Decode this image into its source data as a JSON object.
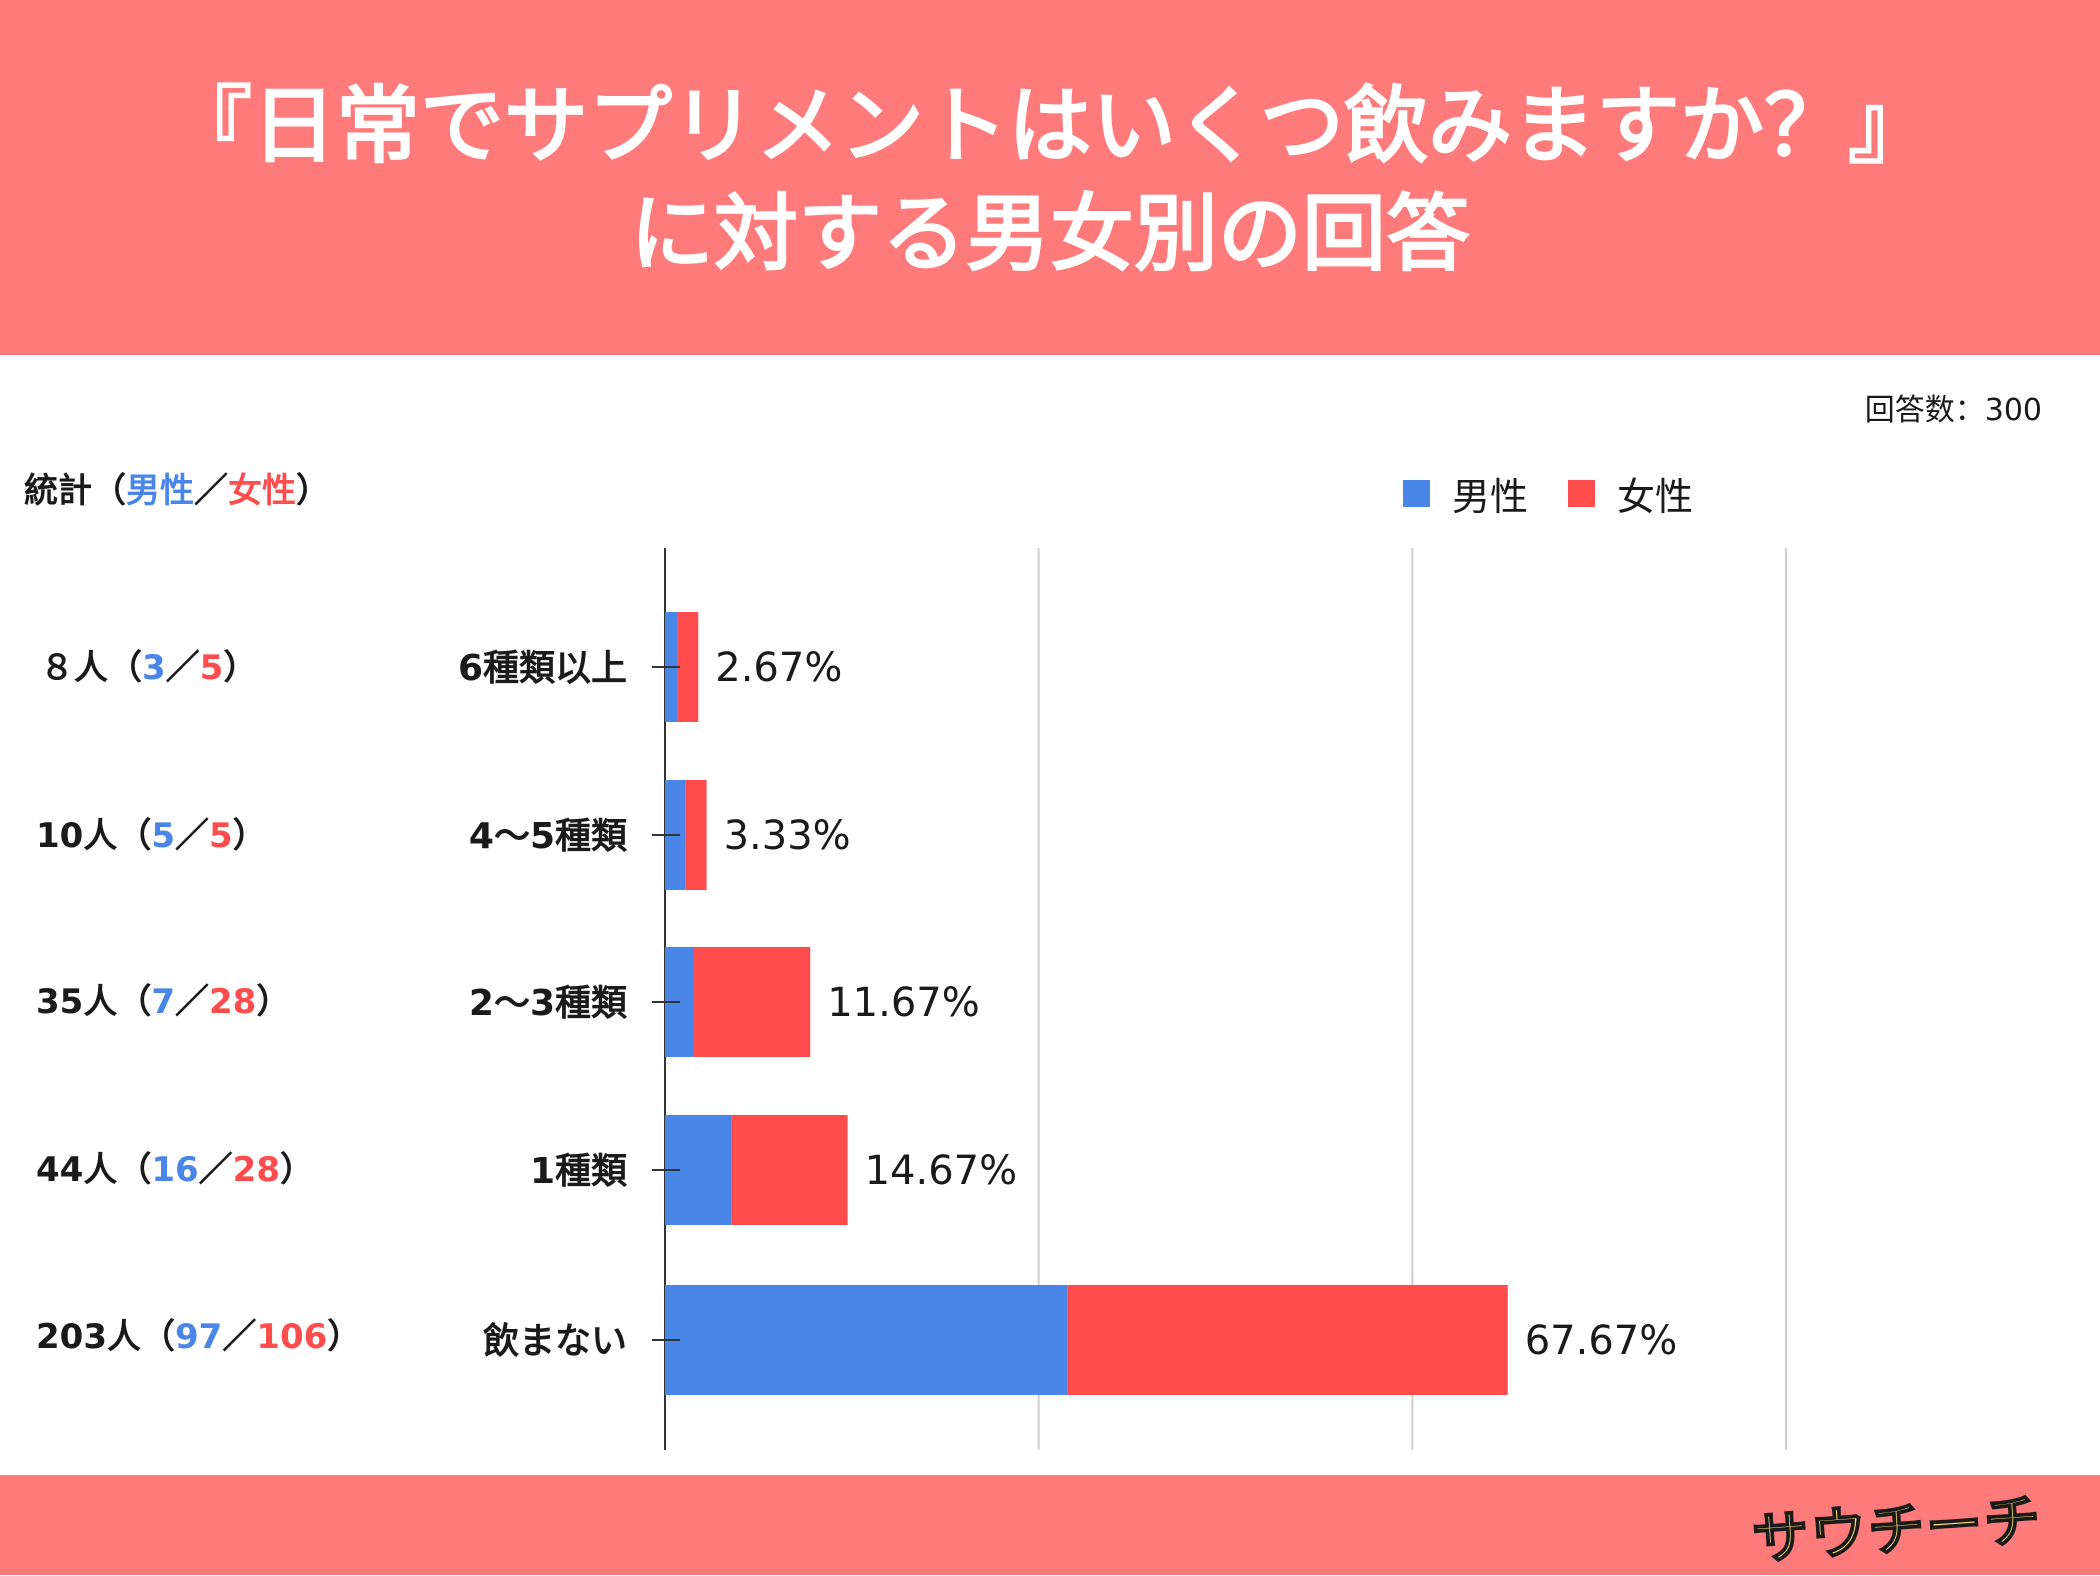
{
  "header": {
    "title_line1": "『日常でサプリメントはいくつ飲みますか？』",
    "title_line2": "に対する男女別の回答"
  },
  "respondents": "回答数：300",
  "stats_header": {
    "prefix": "統計（",
    "male": "男性",
    "slash": "／",
    "female": "女性",
    "suffix": "）"
  },
  "legend": {
    "male": "男性",
    "female": "女性"
  },
  "stats": [
    {
      "total": "８人",
      "male": "3",
      "female": "5"
    },
    {
      "total": "10人",
      "male": "5",
      "female": "5"
    },
    {
      "total": "35人",
      "male": "7",
      "female": "28"
    },
    {
      "total": "44人",
      "male": "16",
      "female": "28"
    },
    {
      "total": "203人",
      "male": "97",
      "female": "106"
    }
  ],
  "footer": {
    "logo_text": "サウチーチ"
  },
  "colors": {
    "male": "#4a86e8",
    "female": "#ff4d4d",
    "brand": "#ff7b7b"
  },
  "chart_data": {
    "type": "bar",
    "orientation": "horizontal",
    "stacked": true,
    "categories": [
      "6種類以上",
      "4〜5種類",
      "2〜3種類",
      "1種類",
      "飲まない"
    ],
    "series": [
      {
        "name": "男性",
        "values": [
          1.0,
          1.67,
          2.33,
          5.33,
          32.33
        ]
      },
      {
        "name": "女性",
        "values": [
          1.67,
          1.67,
          9.33,
          9.33,
          35.33
        ]
      }
    ],
    "totals_labels": [
      "2.67%",
      "3.33%",
      "11.67%",
      "14.67%",
      "67.67%"
    ],
    "xlim": [
      0,
      90
    ],
    "grid_values": [
      30,
      60,
      90
    ],
    "legend_position": "top-right"
  }
}
